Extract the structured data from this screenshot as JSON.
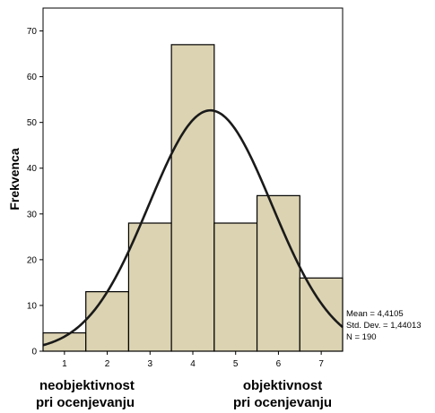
{
  "chart_data": {
    "type": "bar",
    "subtype": "histogram-with-normal-curve",
    "categories": [
      "1",
      "2",
      "3",
      "4",
      "5",
      "6",
      "7"
    ],
    "values": [
      4,
      13,
      28,
      67,
      28,
      34,
      16
    ],
    "ylabel": "Frekvenca",
    "xlabel": "",
    "ylim": [
      0,
      75
    ],
    "yticks": [
      "0",
      "10",
      "20",
      "30",
      "40",
      "50",
      "60",
      "70"
    ],
    "xlim": [
      0.5,
      7.5
    ],
    "grid": false,
    "bar_fill": "#dcd3b2",
    "bar_stroke": "#000000",
    "curve_color": "#1a1a1a",
    "normal_curve": {
      "mean": 4.4105,
      "std": 1.44013,
      "n": 190,
      "bin_width": 1
    },
    "stats": {
      "mean": "Mean = 4,4105",
      "std": "Std. Dev. = 1,44013",
      "n": "N = 190"
    },
    "annotations": {
      "left_line1": "neobjektivnost",
      "left_line2": "pri ocenjevanju",
      "right_line1": "objektivnost",
      "right_line2": "pri ocenjevanju"
    }
  }
}
